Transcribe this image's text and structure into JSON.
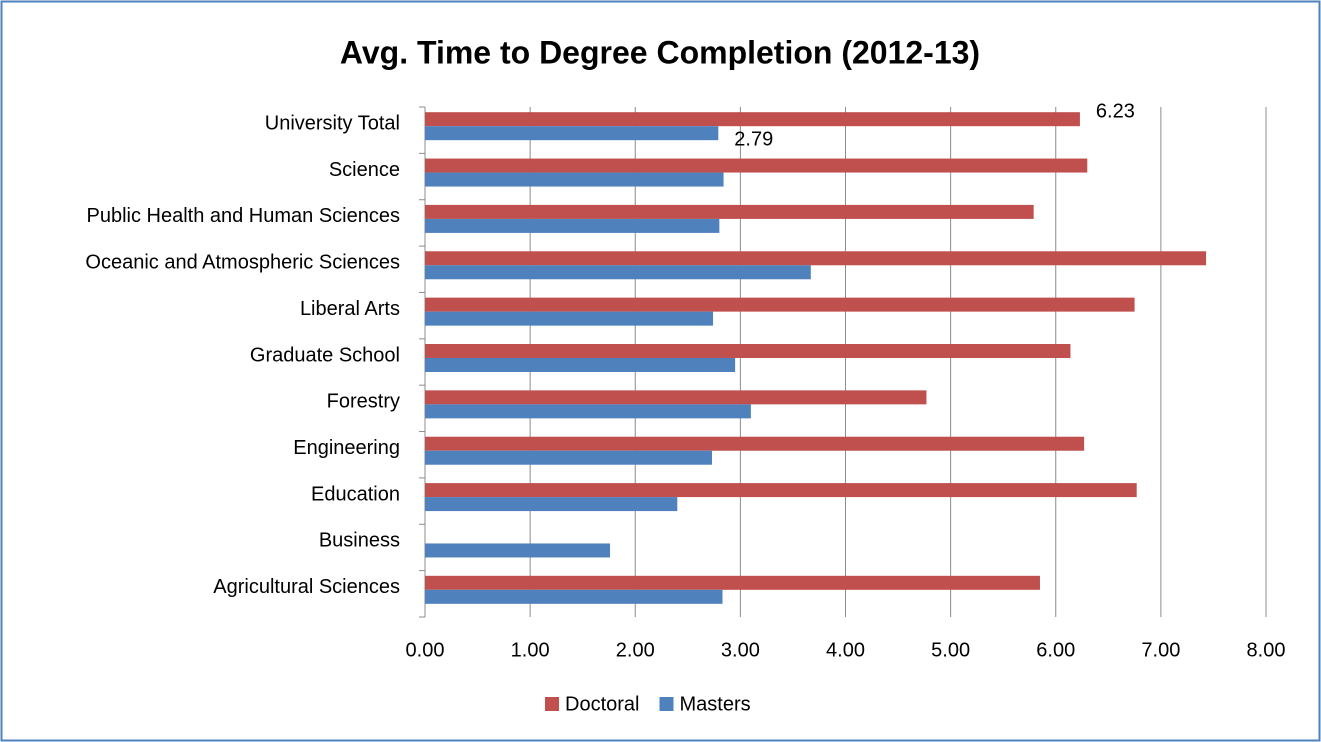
{
  "chart_data": {
    "type": "barh",
    "title": "Avg. Time to Degree Completion (2012-13)",
    "categories": [
      "University Total",
      "Science",
      "Public Health and Human Sciences",
      "Oceanic and Atmospheric Sciences",
      "Liberal Arts",
      "Graduate School",
      "Forestry",
      "Engineering",
      "Education",
      "Business",
      "Agricultural Sciences"
    ],
    "series": [
      {
        "name": "Doctoral",
        "color": "#c0504d",
        "values": [
          6.23,
          6.3,
          5.79,
          7.43,
          6.75,
          6.14,
          4.77,
          6.27,
          6.77,
          null,
          5.85
        ],
        "value_labels": [
          "6.23",
          null,
          null,
          null,
          null,
          null,
          null,
          null,
          null,
          null,
          null
        ]
      },
      {
        "name": "Masters",
        "color": "#4f81bd",
        "values": [
          2.79,
          2.84,
          2.8,
          3.67,
          2.74,
          2.95,
          3.1,
          2.73,
          2.4,
          1.76,
          2.83
        ],
        "value_labels": [
          "2.79",
          null,
          null,
          null,
          null,
          null,
          null,
          null,
          null,
          null,
          null
        ]
      }
    ],
    "xlim": [
      0,
      8
    ],
    "xticks": [
      {
        "value": 0,
        "label": "0.00"
      },
      {
        "value": 1,
        "label": "1.00"
      },
      {
        "value": 2,
        "label": "2.00"
      },
      {
        "value": 3,
        "label": "3.00"
      },
      {
        "value": 4,
        "label": "4.00"
      },
      {
        "value": 5,
        "label": "5.00"
      },
      {
        "value": 6,
        "label": "6.00"
      },
      {
        "value": 7,
        "label": "7.00"
      },
      {
        "value": 8,
        "label": "8.00"
      }
    ],
    "grid": true,
    "legend": "bottom"
  }
}
